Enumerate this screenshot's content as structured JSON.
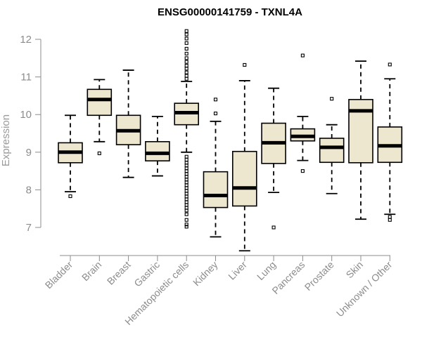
{
  "chart_data": {
    "type": "boxplot",
    "title": "ENSG00000141759 - TXNL4A",
    "xlabel": "",
    "ylabel": "Expression",
    "ylim": [
      6.3,
      12.3
    ],
    "yticks": [
      7,
      8,
      9,
      10,
      11,
      12
    ],
    "box_fill": "#eee7d0",
    "categories": [
      "Bladder",
      "Brain",
      "Breast",
      "Gastric",
      "Hematopoietic cells",
      "Kidney",
      "Liver",
      "Lung",
      "Pancreas",
      "Prostate",
      "Skin",
      "Unknown / Other"
    ],
    "series": [
      {
        "name": "Bladder",
        "whisker_low": 7.95,
        "q1": 8.72,
        "median": 9.0,
        "q3": 9.25,
        "whisker_high": 9.98,
        "outliers": [
          7.83
        ]
      },
      {
        "name": "Brain",
        "whisker_low": 9.28,
        "q1": 9.98,
        "median": 10.4,
        "q3": 10.67,
        "whisker_high": 10.93,
        "outliers": [
          8.97
        ]
      },
      {
        "name": "Breast",
        "whisker_low": 8.33,
        "q1": 9.2,
        "median": 9.57,
        "q3": 9.98,
        "whisker_high": 11.18,
        "outliers": []
      },
      {
        "name": "Gastric",
        "whisker_low": 8.37,
        "q1": 8.77,
        "median": 8.97,
        "q3": 9.28,
        "whisker_high": 9.95,
        "outliers": []
      },
      {
        "name": "Hematopoietic cells",
        "whisker_low": 9.0,
        "q1": 9.73,
        "median": 10.05,
        "q3": 10.3,
        "whisker_high": 10.88,
        "outliers": [
          12.22,
          12.13,
          12.02,
          11.9,
          11.75,
          11.62,
          11.5,
          11.4,
          11.3,
          11.22,
          11.12,
          11.03,
          10.95,
          8.88,
          8.8,
          8.72,
          8.65,
          8.57,
          8.5,
          8.42,
          8.35,
          8.27,
          8.2,
          8.12,
          8.05,
          7.97,
          7.9,
          7.82,
          7.75,
          7.67,
          7.6,
          7.52,
          7.45,
          7.35,
          7.2,
          7.08,
          7.02
        ]
      },
      {
        "name": "Kidney",
        "whisker_low": 6.75,
        "q1": 7.53,
        "median": 7.85,
        "q3": 8.48,
        "whisker_high": 9.82,
        "outliers": [
          10.4,
          10.03
        ]
      },
      {
        "name": "Liver",
        "whisker_low": 6.38,
        "q1": 7.57,
        "median": 8.05,
        "q3": 9.02,
        "whisker_high": 10.9,
        "outliers": [
          11.32
        ]
      },
      {
        "name": "Lung",
        "whisker_low": 7.93,
        "q1": 8.7,
        "median": 9.25,
        "q3": 9.77,
        "whisker_high": 10.7,
        "outliers": [
          7.0
        ]
      },
      {
        "name": "Pancreas",
        "whisker_low": 8.78,
        "q1": 9.3,
        "median": 9.42,
        "q3": 9.62,
        "whisker_high": 9.95,
        "outliers": [
          11.57,
          8.5
        ]
      },
      {
        "name": "Prostate",
        "whisker_low": 7.9,
        "q1": 8.73,
        "median": 9.13,
        "q3": 9.37,
        "whisker_high": 9.73,
        "outliers": [
          10.42
        ]
      },
      {
        "name": "Skin",
        "whisker_low": 7.22,
        "q1": 8.72,
        "median": 10.1,
        "q3": 10.4,
        "whisker_high": 11.42,
        "outliers": []
      },
      {
        "name": "Unknown / Other",
        "whisker_low": 7.35,
        "q1": 8.73,
        "median": 9.17,
        "q3": 9.67,
        "whisker_high": 10.95,
        "outliers": [
          11.33,
          7.28,
          7.2
        ]
      }
    ]
  }
}
